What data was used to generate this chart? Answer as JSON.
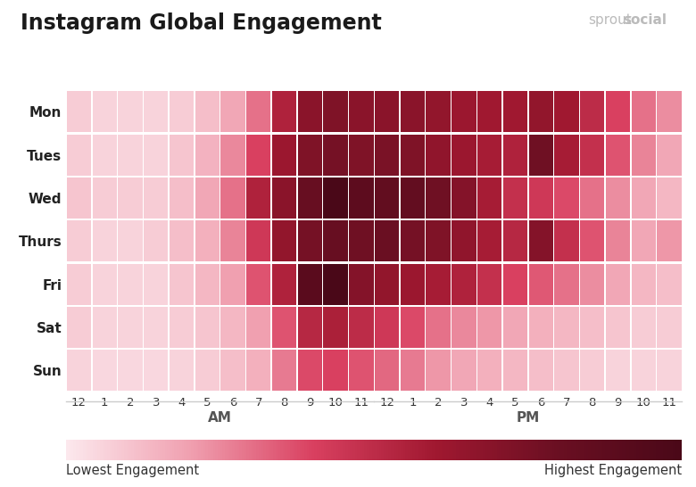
{
  "title": "Instagram Global Engagement",
  "days": [
    "Mon",
    "Tues",
    "Wed",
    "Thurs",
    "Fri",
    "Sat",
    "Sun"
  ],
  "hours": [
    "12",
    "1",
    "2",
    "3",
    "4",
    "5",
    "6",
    "7",
    "8",
    "9",
    "10",
    "11",
    "12",
    "1",
    "2",
    "3",
    "4",
    "5",
    "6",
    "7",
    "8",
    "9",
    "10",
    "11"
  ],
  "am_label": "AM",
  "pm_label": "PM",
  "legend_low": "Lowest Engagement",
  "legend_high": "Highest Engagement",
  "color_low": "#fce8ed",
  "color_high": "#4a0818",
  "background": "#ffffff",
  "heatmap": [
    [
      0.08,
      0.06,
      0.06,
      0.06,
      0.08,
      0.12,
      0.18,
      0.3,
      0.55,
      0.68,
      0.72,
      0.68,
      0.68,
      0.68,
      0.65,
      0.62,
      0.6,
      0.6,
      0.65,
      0.6,
      0.5,
      0.4,
      0.3,
      0.24
    ],
    [
      0.08,
      0.06,
      0.06,
      0.06,
      0.1,
      0.15,
      0.25,
      0.4,
      0.62,
      0.72,
      0.76,
      0.72,
      0.74,
      0.72,
      0.66,
      0.62,
      0.58,
      0.55,
      0.78,
      0.58,
      0.48,
      0.36,
      0.26,
      0.18
    ],
    [
      0.1,
      0.08,
      0.08,
      0.08,
      0.12,
      0.18,
      0.3,
      0.55,
      0.68,
      0.82,
      1.0,
      0.88,
      0.85,
      0.84,
      0.78,
      0.7,
      0.58,
      0.48,
      0.44,
      0.38,
      0.3,
      0.24,
      0.18,
      0.14
    ],
    [
      0.08,
      0.06,
      0.06,
      0.08,
      0.12,
      0.16,
      0.26,
      0.44,
      0.65,
      0.76,
      0.82,
      0.78,
      0.8,
      0.76,
      0.72,
      0.66,
      0.58,
      0.52,
      0.7,
      0.48,
      0.36,
      0.26,
      0.18,
      0.22
    ],
    [
      0.08,
      0.06,
      0.06,
      0.06,
      0.1,
      0.14,
      0.2,
      0.36,
      0.55,
      0.9,
      1.0,
      0.7,
      0.65,
      0.62,
      0.58,
      0.55,
      0.48,
      0.4,
      0.35,
      0.3,
      0.24,
      0.18,
      0.14,
      0.12
    ],
    [
      0.08,
      0.06,
      0.06,
      0.06,
      0.08,
      0.1,
      0.14,
      0.2,
      0.36,
      0.52,
      0.56,
      0.5,
      0.44,
      0.38,
      0.3,
      0.25,
      0.22,
      0.18,
      0.16,
      0.14,
      0.12,
      0.1,
      0.08,
      0.08
    ],
    [
      0.06,
      0.05,
      0.05,
      0.05,
      0.06,
      0.08,
      0.12,
      0.16,
      0.28,
      0.38,
      0.4,
      0.36,
      0.32,
      0.28,
      0.22,
      0.18,
      0.16,
      0.14,
      0.12,
      0.1,
      0.08,
      0.06,
      0.06,
      0.06
    ]
  ]
}
